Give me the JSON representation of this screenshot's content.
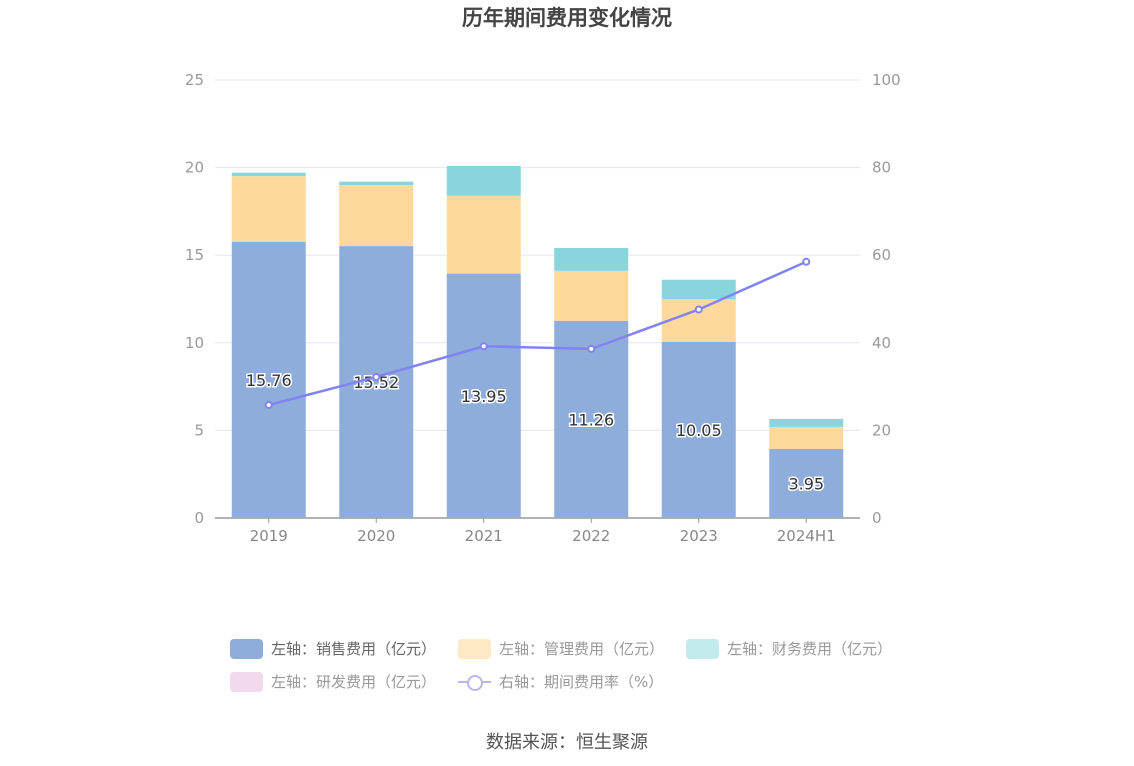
{
  "chart_data": {
    "type": "bar",
    "title": "历年期间费用变化情况",
    "categories": [
      "2019",
      "2020",
      "2021",
      "2022",
      "2023",
      "2024H1"
    ],
    "left_axis": {
      "ticks": [
        "0",
        "5",
        "10",
        "15",
        "20",
        "25"
      ],
      "ylim": [
        0,
        25
      ]
    },
    "right_axis": {
      "ticks": [
        "0",
        "20",
        "40",
        "60",
        "80",
        "100"
      ],
      "ylim": [
        0,
        100
      ]
    },
    "stacked": true,
    "series": [
      {
        "name": "左轴：销售费用（亿元）",
        "color": "#8eaddb",
        "axis": "left",
        "values": [
          15.76,
          15.52,
          13.95,
          11.26,
          10.05,
          3.95
        ],
        "labels": [
          "15.76",
          "15.52",
          "13.95",
          "11.26",
          "10.05",
          "3.95"
        ]
      },
      {
        "name": "左轴：管理费用（亿元）",
        "color": "#ffd99b",
        "axis": "left",
        "values": [
          3.75,
          3.48,
          4.45,
          2.85,
          2.45,
          1.25
        ]
      },
      {
        "name": "左轴：财务费用（亿元）",
        "color": "#88d6db",
        "axis": "left",
        "values": [
          0.2,
          0.2,
          1.7,
          1.3,
          1.1,
          0.45
        ]
      },
      {
        "name": "左轴：研发费用（亿元）",
        "color": "#f3d9ec",
        "axis": "left",
        "values": [
          0,
          0,
          0,
          0,
          0,
          0
        ]
      },
      {
        "name": "右轴：期间费用率（%）",
        "color": "#8183f2",
        "axis": "right",
        "type": "line",
        "values": [
          25.8,
          32.2,
          39.2,
          38.6,
          47.6,
          58.5
        ]
      }
    ],
    "grid": true,
    "legend_position": "bottom"
  },
  "legend": {
    "row1": [
      "左轴：销售费用（亿元）",
      "左轴：管理费用（亿元）",
      "左轴：财务费用（亿元）"
    ],
    "row2": [
      "左轴：研发费用（亿元）",
      "右轴：期间费用率（%）"
    ]
  },
  "source": "数据来源：恒生聚源"
}
